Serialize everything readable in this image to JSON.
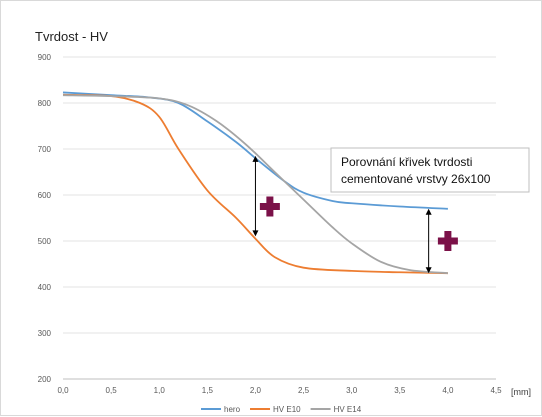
{
  "chart_data": {
    "type": "line",
    "title": "Tvrdost - HV",
    "xlabel": "",
    "ylabel": "",
    "x_unit": "[mm]",
    "xlim": [
      0,
      4.5
    ],
    "ylim": [
      200,
      900
    ],
    "x_ticks": [
      "0,0",
      "0,5",
      "1,0",
      "1,5",
      "2,0",
      "2,5",
      "3,0",
      "3,5",
      "4,0",
      "4,5"
    ],
    "y_ticks": [
      "200",
      "300",
      "400",
      "500",
      "600",
      "700",
      "800",
      "900"
    ],
    "grid": true,
    "legend_position": "bottom",
    "series": [
      {
        "name": "hero",
        "color": "#5B9BD5",
        "points": [
          [
            0,
            823
          ],
          [
            0.5,
            817
          ],
          [
            0.9,
            812
          ],
          [
            1.2,
            800
          ],
          [
            1.5,
            760
          ],
          [
            1.8,
            715
          ],
          [
            2.0,
            680
          ],
          [
            2.3,
            630
          ],
          [
            2.5,
            605
          ],
          [
            2.8,
            587
          ],
          [
            3.0,
            582
          ],
          [
            3.5,
            575
          ],
          [
            4.0,
            570
          ]
        ]
      },
      {
        "name": "HV E10",
        "color": "#ED7D31",
        "points": [
          [
            0,
            818
          ],
          [
            0.5,
            815
          ],
          [
            0.8,
            800
          ],
          [
            1.0,
            770
          ],
          [
            1.2,
            700
          ],
          [
            1.5,
            610
          ],
          [
            1.8,
            550
          ],
          [
            2.0,
            505
          ],
          [
            2.2,
            465
          ],
          [
            2.5,
            442
          ],
          [
            3.0,
            435
          ],
          [
            3.5,
            432
          ],
          [
            4.0,
            430
          ]
        ]
      },
      {
        "name": "HV E14",
        "color": "#A5A5A5",
        "points": [
          [
            0,
            817
          ],
          [
            0.5,
            815
          ],
          [
            1.0,
            810
          ],
          [
            1.3,
            795
          ],
          [
            1.6,
            760
          ],
          [
            1.9,
            710
          ],
          [
            2.2,
            650
          ],
          [
            2.5,
            590
          ],
          [
            2.8,
            530
          ],
          [
            3.0,
            495
          ],
          [
            3.3,
            455
          ],
          [
            3.6,
            437
          ],
          [
            4.0,
            430
          ]
        ]
      }
    ],
    "annotations": {
      "note": [
        "Porovnání křivek tvrdosti",
        "cementované vrstvy 26x100"
      ],
      "arrows": [
        {
          "x": 2.0,
          "y1": 685,
          "y2": 510
        },
        {
          "x": 3.8,
          "y1": 570,
          "y2": 430
        }
      ],
      "plus_markers": [
        {
          "x": 2.15,
          "y": 575
        },
        {
          "x": 4.0,
          "y": 500
        }
      ],
      "plus_color": "#7B1148"
    }
  }
}
